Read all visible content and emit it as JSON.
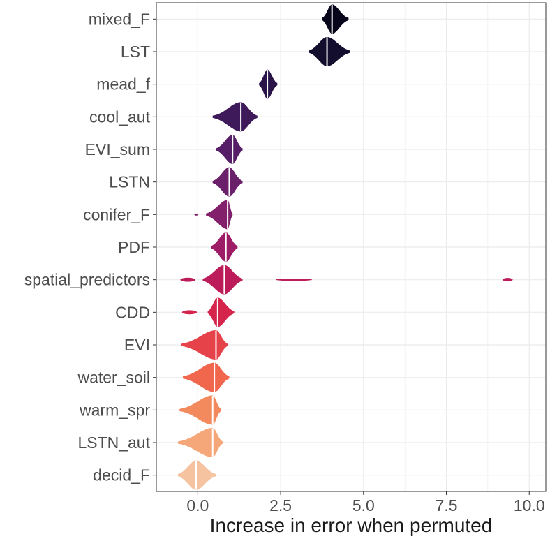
{
  "chart_data": {
    "type": "violin",
    "title": "",
    "xlabel": "Increase in error when permuted",
    "ylabel": "",
    "xlim": [
      -1.25,
      10.5
    ],
    "x_ticks": [
      0,
      2.5,
      5,
      7.5,
      10
    ],
    "x_tick_labels": [
      "0.0",
      "2.5",
      "5.0",
      "7.5",
      "10.0"
    ],
    "grid": true,
    "legend": "none",
    "series": [
      {
        "name": "mixed_F",
        "median": 4.05,
        "color": "#06051a",
        "range": [
          3.75,
          4.55
        ],
        "lumps": []
      },
      {
        "name": "LST",
        "median": 3.9,
        "color": "#130d2e",
        "range": [
          3.35,
          4.6
        ],
        "lumps": []
      },
      {
        "name": "mead_f",
        "median": 2.1,
        "color": "#2a1447",
        "range": [
          1.85,
          2.4
        ],
        "lumps": []
      },
      {
        "name": "cool_aut",
        "median": 1.3,
        "color": "#3e1a5a",
        "range": [
          0.45,
          1.8
        ],
        "lumps": []
      },
      {
        "name": "EVI_sum",
        "median": 1.05,
        "color": "#551e66",
        "range": [
          0.55,
          1.35
        ],
        "lumps": []
      },
      {
        "name": "LSTN",
        "median": 0.95,
        "color": "#6b206a",
        "range": [
          0.45,
          1.35
        ],
        "lumps": []
      },
      {
        "name": "conifer_F",
        "median": 0.9,
        "color": "#82206b",
        "range": [
          0.25,
          1.05
        ],
        "lumps": [
          {
            "x": -0.05,
            "w": 0.1,
            "h": 0.05
          }
        ]
      },
      {
        "name": "PDF",
        "median": 0.85,
        "color": "#9d1e66",
        "range": [
          0.4,
          1.2
        ],
        "lumps": []
      },
      {
        "name": "spatial_predictors",
        "median": 0.8,
        "color": "#bc1d5a",
        "range": [
          0.15,
          1.35
        ],
        "lumps": [
          {
            "x": -0.3,
            "w": 0.45,
            "h": 0.14
          },
          {
            "x": 2.9,
            "w": 1.1,
            "h": 0.08
          },
          {
            "x": 9.35,
            "w": 0.3,
            "h": 0.12
          }
        ]
      },
      {
        "name": "CDD",
        "median": 0.6,
        "color": "#d6254d",
        "range": [
          0.3,
          1.1
        ],
        "lumps": [
          {
            "x": -0.25,
            "w": 0.45,
            "h": 0.14
          }
        ]
      },
      {
        "name": "EVI",
        "median": 0.55,
        "color": "#e6424a",
        "range": [
          -0.5,
          0.9
        ],
        "lumps": []
      },
      {
        "name": "water_soil",
        "median": 0.5,
        "color": "#f0674e",
        "range": [
          -0.45,
          0.95
        ],
        "lumps": []
      },
      {
        "name": "warm_spr",
        "median": 0.45,
        "color": "#f38a5d",
        "range": [
          -0.55,
          0.7
        ],
        "lumps": []
      },
      {
        "name": "LSTN_aut",
        "median": 0.45,
        "color": "#f5a77a",
        "range": [
          -0.6,
          0.75
        ],
        "lumps": []
      },
      {
        "name": "decid_F",
        "median": -0.05,
        "color": "#f6c3a0",
        "range": [
          -0.6,
          0.55
        ],
        "lumps": []
      }
    ]
  }
}
